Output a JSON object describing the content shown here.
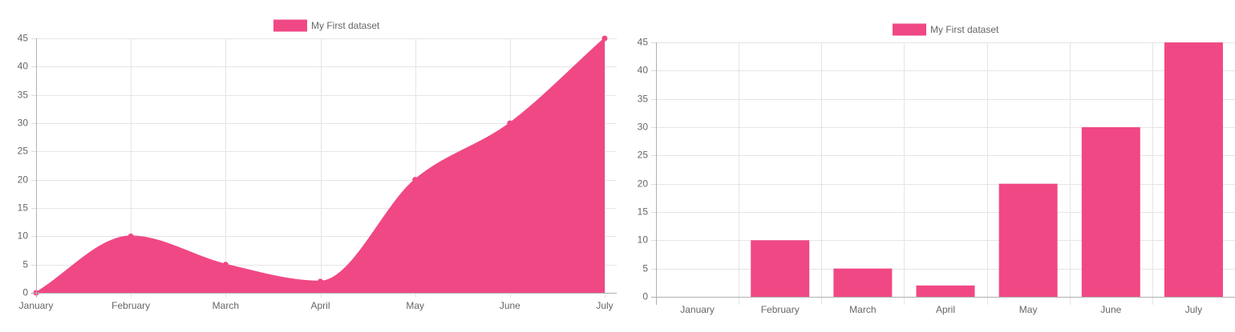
{
  "chart_data": [
    {
      "type": "area",
      "categories": [
        "January",
        "February",
        "March",
        "April",
        "May",
        "June",
        "July"
      ],
      "series": [
        {
          "name": "My First dataset",
          "values": [
            0,
            10,
            5,
            2,
            20,
            30,
            45
          ],
          "color": "#f04884"
        }
      ],
      "title": "",
      "xlabel": "",
      "ylabel": "",
      "ylim": [
        0,
        45
      ],
      "yticks": [
        0,
        5,
        10,
        15,
        20,
        25,
        30,
        35,
        40,
        45
      ],
      "grid": true,
      "legend": "top-center",
      "smooth": true,
      "points": true
    },
    {
      "type": "bar",
      "categories": [
        "January",
        "February",
        "March",
        "April",
        "May",
        "June",
        "July"
      ],
      "series": [
        {
          "name": "My First dataset",
          "values": [
            0,
            10,
            5,
            2,
            20,
            30,
            45
          ],
          "color": "#f04884"
        }
      ],
      "title": "",
      "xlabel": "",
      "ylabel": "",
      "ylim": [
        0,
        45
      ],
      "yticks": [
        0,
        5,
        10,
        15,
        20,
        25,
        30,
        35,
        40,
        45
      ],
      "grid": true,
      "legend": "top-center"
    }
  ]
}
